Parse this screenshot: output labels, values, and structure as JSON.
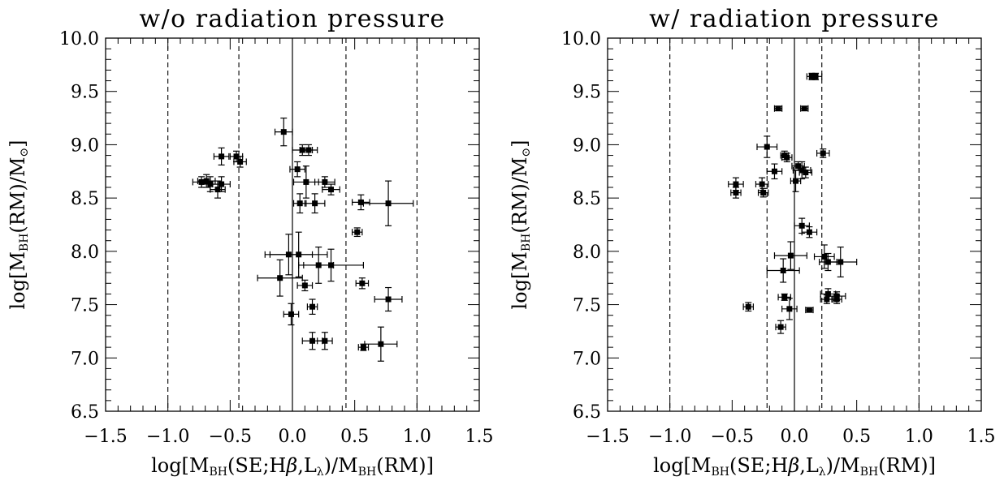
{
  "chart_data": [
    {
      "type": "scatter",
      "title": "w/o radiation pressure",
      "xlabel": "log[M_BH(SE;Hβ,L_λ)/M_BH(RM)]",
      "ylabel": "log[M_BH(RM)/M_⊙]",
      "xlim": [
        -1.5,
        1.5
      ],
      "ylim": [
        6.5,
        10.0
      ],
      "xticks": [
        "−1.5",
        "−1.0",
        "−0.5",
        "0.0",
        "0.5",
        "1.0",
        "1.5"
      ],
      "yticks": [
        "6.5",
        "7.0",
        "7.5",
        "8.0",
        "8.5",
        "9.0",
        "9.5",
        "10.0"
      ],
      "vlines_solid": [
        0.0
      ],
      "vlines_dashed": [
        -1.0,
        -0.43,
        0.43,
        1.0
      ],
      "grid": false,
      "points": [
        {
          "x": -0.73,
          "y": 8.65,
          "xerr": 0.07,
          "yerr": 0.05
        },
        {
          "x": -0.69,
          "y": 8.66,
          "xerr": 0.07,
          "yerr": 0.06
        },
        {
          "x": -0.66,
          "y": 8.63,
          "xerr": 0.07,
          "yerr": 0.07
        },
        {
          "x": -0.6,
          "y": 8.58,
          "xerr": 0.06,
          "yerr": 0.08
        },
        {
          "x": -0.57,
          "y": 8.63,
          "xerr": 0.07,
          "yerr": 0.07
        },
        {
          "x": -0.57,
          "y": 8.89,
          "xerr": 0.06,
          "yerr": 0.08
        },
        {
          "x": -0.45,
          "y": 8.89,
          "xerr": 0.05,
          "yerr": 0.05
        },
        {
          "x": -0.42,
          "y": 8.84,
          "xerr": 0.05,
          "yerr": 0.05
        },
        {
          "x": -0.07,
          "y": 9.12,
          "xerr": 0.07,
          "yerr": 0.13
        },
        {
          "x": 0.08,
          "y": 8.95,
          "xerr": 0.08,
          "yerr": 0.05
        },
        {
          "x": 0.13,
          "y": 8.95,
          "xerr": 0.07,
          "yerr": 0.05
        },
        {
          "x": 0.04,
          "y": 8.77,
          "xerr": 0.06,
          "yerr": 0.07
        },
        {
          "x": 0.11,
          "y": 8.65,
          "xerr": 0.1,
          "yerr": 0.15
        },
        {
          "x": 0.26,
          "y": 8.65,
          "xerr": 0.08,
          "yerr": 0.05
        },
        {
          "x": 0.31,
          "y": 8.58,
          "xerr": 0.07,
          "yerr": 0.05
        },
        {
          "x": 0.06,
          "y": 8.45,
          "xerr": 0.05,
          "yerr": 0.09
        },
        {
          "x": 0.18,
          "y": 8.45,
          "xerr": 0.08,
          "yerr": 0.09
        },
        {
          "x": 0.55,
          "y": 8.46,
          "xerr": 0.07,
          "yerr": 0.07
        },
        {
          "x": 0.77,
          "y": 8.45,
          "xerr": 0.2,
          "yerr": 0.21
        },
        {
          "x": 0.52,
          "y": 8.18,
          "xerr": 0.04,
          "yerr": 0.04
        },
        {
          "x": -0.03,
          "y": 7.97,
          "xerr": 0.19,
          "yerr": 0.19
        },
        {
          "x": 0.05,
          "y": 7.97,
          "xerr": 0.23,
          "yerr": 0.21
        },
        {
          "x": 0.21,
          "y": 7.87,
          "xerr": 0.12,
          "yerr": 0.17
        },
        {
          "x": 0.31,
          "y": 7.87,
          "xerr": 0.26,
          "yerr": 0.15
        },
        {
          "x": -0.1,
          "y": 7.75,
          "xerr": 0.18,
          "yerr": 0.17
        },
        {
          "x": 0.1,
          "y": 7.68,
          "xerr": 0.06,
          "yerr": 0.05
        },
        {
          "x": 0.56,
          "y": 7.7,
          "xerr": 0.05,
          "yerr": 0.05
        },
        {
          "x": 0.16,
          "y": 7.48,
          "xerr": 0.04,
          "yerr": 0.07
        },
        {
          "x": 0.77,
          "y": 7.55,
          "xerr": 0.11,
          "yerr": 0.11
        },
        {
          "x": -0.01,
          "y": 7.41,
          "xerr": 0.06,
          "yerr": 0.1
        },
        {
          "x": 0.16,
          "y": 7.16,
          "xerr": 0.08,
          "yerr": 0.08
        },
        {
          "x": 0.26,
          "y": 7.16,
          "xerr": 0.06,
          "yerr": 0.08
        },
        {
          "x": 0.57,
          "y": 7.1,
          "xerr": 0.04,
          "yerr": 0.03
        },
        {
          "x": 0.71,
          "y": 7.13,
          "xerr": 0.13,
          "yerr": 0.16
        }
      ]
    },
    {
      "type": "scatter",
      "title": "w/ radiation pressure",
      "xlabel": "log[M_BH(SE;Hβ,L_λ)/M_BH(RM)]",
      "ylabel": "log[M_BH(RM)/M_⊙]",
      "xlim": [
        -1.5,
        1.5
      ],
      "ylim": [
        6.5,
        10.0
      ],
      "xticks": [
        "−1.5",
        "−1.0",
        "−0.5",
        "0.0",
        "0.5",
        "1.0",
        "1.5"
      ],
      "yticks": [
        "6.5",
        "7.0",
        "7.5",
        "8.0",
        "8.5",
        "9.0",
        "9.5",
        "10.0"
      ],
      "vlines_solid": [
        0.0
      ],
      "vlines_dashed": [
        -1.0,
        -0.22,
        0.22,
        1.0
      ],
      "grid": false,
      "points": [
        {
          "x": 0.14,
          "y": 9.64,
          "xerr": 0.04,
          "yerr": 0.03
        },
        {
          "x": 0.17,
          "y": 9.64,
          "xerr": 0.05,
          "yerr": 0.03
        },
        {
          "x": -0.13,
          "y": 9.34,
          "xerr": 0.03,
          "yerr": 0.02
        },
        {
          "x": 0.08,
          "y": 9.34,
          "xerr": 0.03,
          "yerr": 0.02
        },
        {
          "x": -0.22,
          "y": 8.98,
          "xerr": 0.08,
          "yerr": 0.1
        },
        {
          "x": -0.08,
          "y": 8.9,
          "xerr": 0.03,
          "yerr": 0.04
        },
        {
          "x": -0.06,
          "y": 8.88,
          "xerr": 0.04,
          "yerr": 0.04
        },
        {
          "x": 0.03,
          "y": 8.8,
          "xerr": 0.05,
          "yerr": 0.04
        },
        {
          "x": 0.23,
          "y": 8.92,
          "xerr": 0.05,
          "yerr": 0.04
        },
        {
          "x": -0.16,
          "y": 8.75,
          "xerr": 0.06,
          "yerr": 0.07
        },
        {
          "x": 0.06,
          "y": 8.76,
          "xerr": 0.07,
          "yerr": 0.08
        },
        {
          "x": 0.09,
          "y": 8.74,
          "xerr": 0.05,
          "yerr": 0.05
        },
        {
          "x": 0.01,
          "y": 8.66,
          "xerr": 0.04,
          "yerr": 0.1
        },
        {
          "x": -0.47,
          "y": 8.63,
          "xerr": 0.06,
          "yerr": 0.06
        },
        {
          "x": -0.26,
          "y": 8.63,
          "xerr": 0.05,
          "yerr": 0.06
        },
        {
          "x": -0.47,
          "y": 8.55,
          "xerr": 0.04,
          "yerr": 0.05
        },
        {
          "x": -0.25,
          "y": 8.55,
          "xerr": 0.04,
          "yerr": 0.04
        },
        {
          "x": 0.06,
          "y": 8.24,
          "xerr": 0.06,
          "yerr": 0.07
        },
        {
          "x": 0.12,
          "y": 8.18,
          "xerr": 0.06,
          "yerr": 0.05
        },
        {
          "x": -0.03,
          "y": 7.96,
          "xerr": 0.13,
          "yerr": 0.13
        },
        {
          "x": 0.24,
          "y": 7.95,
          "xerr": 0.08,
          "yerr": 0.11
        },
        {
          "x": 0.27,
          "y": 7.9,
          "xerr": 0.07,
          "yerr": 0.08
        },
        {
          "x": 0.37,
          "y": 7.9,
          "xerr": 0.13,
          "yerr": 0.14
        },
        {
          "x": -0.09,
          "y": 7.82,
          "xerr": 0.13,
          "yerr": 0.11
        },
        {
          "x": -0.08,
          "y": 7.57,
          "xerr": 0.05,
          "yerr": 0.03
        },
        {
          "x": 0.27,
          "y": 7.6,
          "xerr": 0.06,
          "yerr": 0.05
        },
        {
          "x": 0.34,
          "y": 7.58,
          "xerr": 0.07,
          "yerr": 0.04
        },
        {
          "x": 0.34,
          "y": 7.55,
          "xerr": 0.04,
          "yerr": 0.04
        },
        {
          "x": 0.26,
          "y": 7.55,
          "xerr": 0.05,
          "yerr": 0.04
        },
        {
          "x": -0.37,
          "y": 7.48,
          "xerr": 0.04,
          "yerr": 0.04
        },
        {
          "x": -0.04,
          "y": 7.46,
          "xerr": 0.06,
          "yerr": 0.1
        },
        {
          "x": 0.12,
          "y": 7.45,
          "xerr": 0.03,
          "yerr": 0.02
        },
        {
          "x": -0.11,
          "y": 7.29,
          "xerr": 0.04,
          "yerr": 0.06
        }
      ]
    }
  ]
}
